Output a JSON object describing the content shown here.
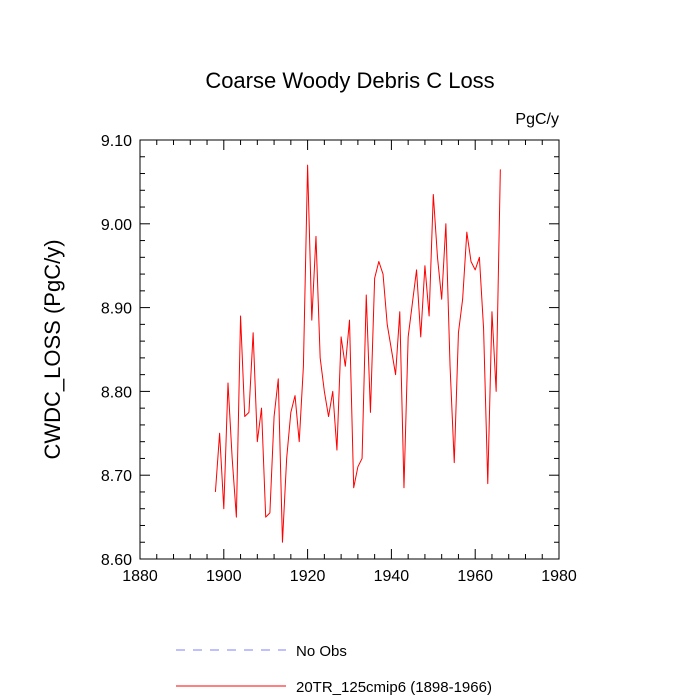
{
  "chart_data": {
    "type": "line",
    "title": "Coarse Woody Debris C Loss",
    "units": "PgC/y",
    "ylabel": "CWDC_LOSS  (PgC/y)",
    "xlabel": "",
    "xlim": [
      1880,
      1980
    ],
    "ylim": [
      8.6,
      9.1
    ],
    "x_major_ticks": [
      1880,
      1900,
      1920,
      1940,
      1960,
      1980
    ],
    "x_tick_labels": [
      "1880",
      "1900",
      "1920",
      "1940",
      "1960",
      "1980"
    ],
    "y_major_ticks": [
      8.6,
      8.7,
      8.8,
      8.9,
      9.0,
      9.1
    ],
    "y_tick_labels": [
      "8.60",
      "8.70",
      "8.80",
      "8.90",
      "9.00",
      "9.10"
    ],
    "grid": false,
    "legend": "bottom",
    "series": [
      {
        "name": "No Obs",
        "legend_label": "No Obs",
        "color": "#8080ff",
        "dash": true,
        "x": [],
        "values": []
      },
      {
        "name": "20TR_125cmip6",
        "legend_label": "20TR_125cmip6 (1898-1966)",
        "color": "#ff0000",
        "dash": false,
        "x": [
          1898,
          1899,
          1900,
          1901,
          1902,
          1903,
          1904,
          1905,
          1906,
          1907,
          1908,
          1909,
          1910,
          1911,
          1912,
          1913,
          1914,
          1915,
          1916,
          1917,
          1918,
          1919,
          1920,
          1921,
          1922,
          1923,
          1924,
          1925,
          1926,
          1927,
          1928,
          1929,
          1930,
          1931,
          1932,
          1933,
          1934,
          1935,
          1936,
          1937,
          1938,
          1939,
          1940,
          1941,
          1942,
          1943,
          1944,
          1945,
          1946,
          1947,
          1948,
          1949,
          1950,
          1951,
          1952,
          1953,
          1954,
          1955,
          1956,
          1957,
          1958,
          1959,
          1960,
          1961,
          1962,
          1963,
          1964,
          1965,
          1966
        ],
        "values": [
          8.68,
          8.75,
          8.66,
          8.81,
          8.72,
          8.65,
          8.89,
          8.77,
          8.775,
          8.87,
          8.74,
          8.78,
          8.65,
          8.655,
          8.77,
          8.815,
          8.62,
          8.72,
          8.775,
          8.795,
          8.74,
          8.83,
          9.07,
          8.885,
          8.985,
          8.84,
          8.8,
          8.77,
          8.8,
          8.73,
          8.865,
          8.83,
          8.885,
          8.685,
          8.71,
          8.72,
          8.915,
          8.775,
          8.935,
          8.955,
          8.94,
          8.88,
          8.85,
          8.82,
          8.895,
          8.685,
          8.865,
          8.905,
          8.945,
          8.865,
          8.95,
          8.89,
          9.035,
          8.96,
          8.91,
          9.0,
          8.83,
          8.715,
          8.87,
          8.91,
          8.99,
          8.955,
          8.945,
          8.96,
          8.875,
          8.69,
          8.895,
          8.8,
          9.065
        ]
      }
    ]
  }
}
